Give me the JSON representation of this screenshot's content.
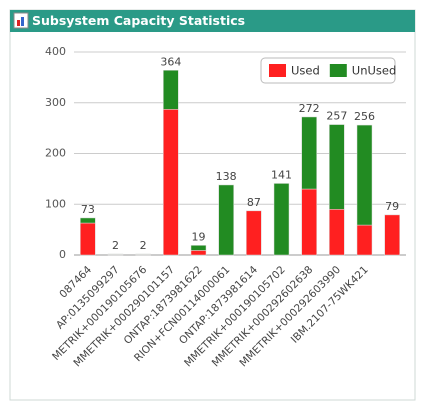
{
  "chart_data": {
    "type": "stacked-bar",
    "title": "Subsystem Capacity Statistics",
    "categories": [
      "087464",
      "AP:0135099297",
      "METRIK+000190105676",
      "MMETRIK+000290101157",
      "ONTAP:1873981622",
      "RION+FCN00114000061",
      "ONTAP:1873981614",
      "MMETRIK+000190105702",
      "MMETRIK+000292602638",
      "MMETRIK+000292603990",
      "IBM.2107-75WK421",
      null
    ],
    "series": [
      {
        "name": "Used",
        "color": "#ff2020",
        "values": [
          63,
          1,
          1,
          287,
          9,
          0,
          87,
          0,
          130,
          90,
          59,
          79
        ]
      },
      {
        "name": "UnUsed",
        "color": "#228b22",
        "values": [
          10,
          1,
          1,
          77,
          10,
          138,
          0,
          141,
          142,
          167,
          197,
          0
        ]
      }
    ],
    "totals": [
      73,
      2,
      2,
      364,
      19,
      138,
      87,
      141,
      272,
      257,
      256,
      79
    ],
    "ylim": [
      0,
      400
    ],
    "yticks": [
      0,
      100,
      200,
      300,
      400
    ],
    "grid": true,
    "legend": "top-right"
  }
}
